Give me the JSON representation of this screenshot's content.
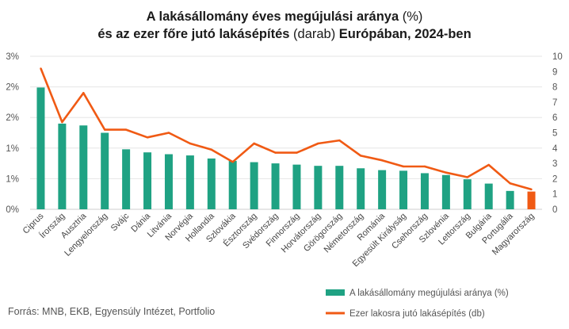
{
  "title": {
    "l1a": "A lakásállomány éves megújulási aránya",
    "l1b": " (%)",
    "l2a": "és az ezer főre jutó lakásépítés",
    "l2b": " (darab) ",
    "l2c": "Európában, 2024-ben"
  },
  "source": "Forrás: MNB, EKB, Egyensúly Intézet, Portfolio",
  "chart_data": {
    "type": "bar",
    "categories": [
      "Ciprus",
      "Írország",
      "Ausztria",
      "Lengyelország",
      "Svájc",
      "Dánia",
      "Litvánia",
      "Norvégia",
      "Hollandia",
      "Szlovákia",
      "Észtország",
      "Svédország",
      "Finnország",
      "Horvátország",
      "Görögország",
      "Németország",
      "Románia",
      "Egyesült Királyság",
      "Csehország",
      "Szlovénia",
      "Lettország",
      "Bulgária",
      "Portugália",
      "Magyarország"
    ],
    "y_left_ticks": [
      "0%",
      "1%",
      "1%",
      "2%",
      "2%",
      "3%"
    ],
    "y_left_lim": [
      0,
      2.5
    ],
    "y_right_ticks": [
      "0",
      "1",
      "2",
      "3",
      "4",
      "5",
      "6",
      "7",
      "8",
      "9",
      "10"
    ],
    "y_right_lim": [
      0,
      10
    ],
    "series": [
      {
        "name": "A lakásállomány megújulási aránya (%)",
        "axis": "left",
        "type": "bar",
        "color": "#1fa283",
        "highlight_color": "#f05a14",
        "highlight_category": "Magyarország",
        "values": [
          1.99,
          1.4,
          1.37,
          1.25,
          0.98,
          0.93,
          0.9,
          0.88,
          0.83,
          0.79,
          0.77,
          0.75,
          0.73,
          0.71,
          0.71,
          0.67,
          0.64,
          0.63,
          0.59,
          0.56,
          0.49,
          0.42,
          0.3,
          0.29
        ]
      },
      {
        "name": "Ezer lakosra jutó lakásépítés (db)",
        "axis": "right",
        "type": "line",
        "color": "#f05a14",
        "values": [
          9.2,
          5.7,
          7.6,
          5.2,
          5.2,
          4.7,
          5.0,
          4.3,
          3.9,
          3.1,
          4.3,
          3.7,
          3.7,
          4.3,
          4.5,
          3.5,
          3.2,
          2.8,
          2.8,
          2.4,
          2.1,
          2.9,
          1.7,
          1.3
        ]
      }
    ],
    "grid": true,
    "legend_position": "bottom-right"
  }
}
